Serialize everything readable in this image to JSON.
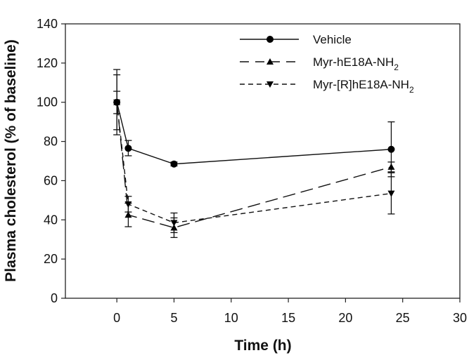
{
  "chart_data": {
    "type": "line",
    "title": "",
    "xlabel": "Time (h)",
    "ylabel": "Plasma cholesterol (% of baseline)",
    "xlim": [
      -4.5,
      30
    ],
    "ylim": [
      0,
      140
    ],
    "xticks": [
      0,
      5,
      10,
      15,
      20,
      25,
      30
    ],
    "yticks": [
      0,
      20,
      40,
      60,
      80,
      100,
      120,
      140
    ],
    "grid": false,
    "legend_position": "upper right",
    "x": [
      0,
      1,
      5,
      24
    ],
    "series": [
      {
        "name": "Vehicle",
        "marker": "circle",
        "line": "solid",
        "values": [
          100,
          76.5,
          68.5,
          76
        ],
        "error_low": [
          83.4,
          72.7,
          67.5,
          62
        ],
        "error_high": [
          116.7,
          80.5,
          69.5,
          90
        ]
      },
      {
        "name": "Myr-hE18A-NH2",
        "marker": "triangle-up",
        "line": "long-dash",
        "values": [
          100,
          42.5,
          36,
          67
        ],
        "error_low": [
          86,
          36.5,
          31,
          64.5
        ],
        "error_high": [
          114,
          48.5,
          41,
          69.5
        ]
      },
      {
        "name": "Myr-[R]hE18A-NH2",
        "marker": "triangle-down",
        "line": "short-dash",
        "values": [
          100,
          48,
          38.5,
          53.5
        ],
        "error_low": [
          94.2,
          44,
          33.5,
          43
        ],
        "error_high": [
          105.6,
          52,
          43.5,
          64
        ]
      }
    ]
  },
  "labels": {
    "xlabel": "Time (h)",
    "ylabel": "Plasma cholesterol (% of baseline)",
    "legend": [
      {
        "main": "Vehicle",
        "sub": ""
      },
      {
        "main": "Myr-hE18A-NH",
        "sub": "2"
      },
      {
        "main": "Myr-[R]hE18A-NH",
        "sub": "2"
      }
    ]
  }
}
